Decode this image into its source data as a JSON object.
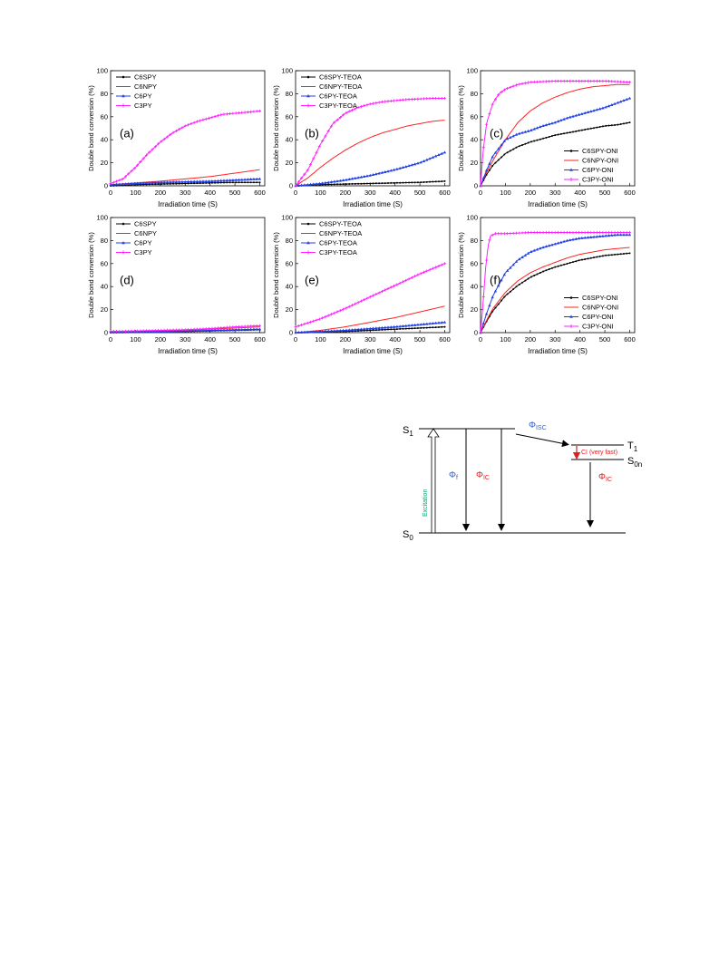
{
  "colors": {
    "C6SPY": "#000000",
    "C6NPY": "#ff2020",
    "C6PY": "#1f3fe8",
    "C3PY": "#ff20ff",
    "text": "#000000",
    "green": "#00a06a",
    "blue": "#2f5fd0",
    "red": "#e02020"
  },
  "chart_data": [
    {
      "type": "line",
      "label": "(a)",
      "xlabel": "Irradiation time (S)",
      "ylabel": "Double bond conversion (%)",
      "xlim": [
        0,
        620
      ],
      "ylim": [
        0,
        100
      ],
      "xticks": [
        0,
        100,
        200,
        300,
        400,
        500,
        600
      ],
      "yticks": [
        0,
        20,
        40,
        60,
        80,
        100
      ],
      "legend_position": "top-left",
      "label_position": "left",
      "series": [
        {
          "name": "C6SPY",
          "key": "C6SPY",
          "x": [
            0,
            100,
            200,
            300,
            400,
            500,
            600
          ],
          "y": [
            0,
            1,
            1.5,
            2,
            2.5,
            3,
            3
          ]
        },
        {
          "name": "C6NPY",
          "key": "C6NPY",
          "x": [
            0,
            100,
            200,
            300,
            400,
            500,
            600
          ],
          "y": [
            1,
            2.5,
            4,
            6,
            8,
            11,
            14
          ]
        },
        {
          "name": "C6PY",
          "key": "C6PY",
          "x": [
            0,
            100,
            200,
            300,
            400,
            500,
            600
          ],
          "y": [
            1,
            2,
            3,
            3.5,
            4,
            5,
            6
          ]
        },
        {
          "name": "C3PY",
          "key": "C3PY",
          "x": [
            0,
            50,
            100,
            150,
            200,
            250,
            300,
            350,
            400,
            450,
            500,
            550,
            600
          ],
          "y": [
            2,
            6,
            16,
            28,
            38,
            46,
            52,
            56,
            59,
            62,
            63,
            64,
            65
          ]
        }
      ]
    },
    {
      "type": "line",
      "label": "(b)",
      "xlabel": "Irradiation time (S)",
      "ylabel": "Double bond conversion (%)",
      "xlim": [
        0,
        620
      ],
      "ylim": [
        0,
        100
      ],
      "xticks": [
        0,
        100,
        200,
        300,
        400,
        500,
        600
      ],
      "yticks": [
        0,
        20,
        40,
        60,
        80,
        100
      ],
      "legend_position": "top-left",
      "label_position": "left",
      "series": [
        {
          "name": "C6SPY-TEOA",
          "key": "C6SPY",
          "x": [
            0,
            100,
            200,
            300,
            400,
            500,
            600
          ],
          "y": [
            0,
            1,
            1.5,
            2,
            2.5,
            3,
            4
          ]
        },
        {
          "name": "C6NPY-TEOA",
          "key": "C6NPY",
          "x": [
            0,
            50,
            100,
            150,
            200,
            250,
            300,
            350,
            400,
            450,
            500,
            550,
            600
          ],
          "y": [
            0,
            7,
            16,
            24,
            31,
            37,
            42,
            46,
            49,
            52,
            54,
            56,
            57
          ]
        },
        {
          "name": "C6PY-TEOA",
          "key": "C6PY",
          "x": [
            0,
            100,
            200,
            300,
            400,
            500,
            600
          ],
          "y": [
            0,
            2,
            5,
            9,
            14,
            20,
            29
          ]
        },
        {
          "name": "C3PY-TEOA",
          "key": "C3PY",
          "x": [
            0,
            50,
            100,
            150,
            200,
            250,
            300,
            350,
            400,
            450,
            500,
            550,
            600
          ],
          "y": [
            0,
            14,
            36,
            54,
            63,
            68,
            71,
            73,
            74,
            75,
            75.5,
            76,
            76
          ]
        }
      ]
    },
    {
      "type": "line",
      "label": "(c)",
      "xlabel": "Irradiation time (S)",
      "ylabel": "Double bond conversion (%)",
      "xlim": [
        0,
        620
      ],
      "ylim": [
        0,
        100
      ],
      "xticks": [
        0,
        100,
        200,
        300,
        400,
        500,
        600
      ],
      "yticks": [
        0,
        20,
        40,
        60,
        80,
        100
      ],
      "legend_position": "bottom-right",
      "label_position": "left",
      "series": [
        {
          "name": "C6SPY-ONI",
          "key": "C6SPY",
          "x": [
            0,
            25,
            50,
            100,
            150,
            200,
            250,
            300,
            350,
            400,
            450,
            500,
            550,
            600
          ],
          "y": [
            0,
            10,
            18,
            28,
            34,
            38,
            41,
            44,
            46,
            48,
            50,
            52,
            53,
            55
          ]
        },
        {
          "name": "C6NPY-ONI",
          "key": "C6NPY",
          "x": [
            0,
            25,
            50,
            100,
            150,
            200,
            250,
            300,
            350,
            400,
            450,
            500,
            550,
            600
          ],
          "y": [
            0,
            12,
            22,
            40,
            55,
            65,
            72,
            77,
            81,
            84,
            86,
            87,
            88,
            88
          ]
        },
        {
          "name": "C6PY-ONI",
          "key": "C6PY",
          "x": [
            0,
            25,
            50,
            100,
            150,
            200,
            250,
            300,
            350,
            400,
            450,
            500,
            550,
            600
          ],
          "y": [
            0,
            14,
            26,
            40,
            45,
            48,
            52,
            55,
            59,
            62,
            65,
            68,
            72,
            76
          ]
        },
        {
          "name": "C3PY-ONI",
          "key": "C3PY",
          "x": [
            0,
            10,
            25,
            50,
            75,
            100,
            150,
            200,
            300,
            400,
            500,
            600
          ],
          "y": [
            0,
            30,
            55,
            72,
            80,
            84,
            88,
            90,
            91,
            91,
            91,
            90
          ]
        }
      ]
    },
    {
      "type": "line",
      "label": "(d)",
      "xlabel": "Irradiation time (S)",
      "ylabel": "Double bond conversion (%)",
      "xlim": [
        0,
        620
      ],
      "ylim": [
        0,
        100
      ],
      "xticks": [
        0,
        100,
        200,
        300,
        400,
        500,
        600
      ],
      "yticks": [
        0,
        20,
        40,
        60,
        80,
        100
      ],
      "legend_position": "top-left",
      "label_position": "left",
      "series": [
        {
          "name": "C6SPY",
          "key": "C6SPY",
          "x": [
            0,
            100,
            200,
            300,
            400,
            500,
            600
          ],
          "y": [
            0,
            0.5,
            1,
            1,
            1.5,
            2,
            2.5
          ]
        },
        {
          "name": "C6NPY",
          "key": "C6NPY",
          "x": [
            0,
            100,
            200,
            300,
            400,
            500,
            600
          ],
          "y": [
            1,
            1,
            1.5,
            2,
            3,
            4,
            5
          ]
        },
        {
          "name": "C6PY",
          "key": "C6PY",
          "x": [
            0,
            100,
            200,
            300,
            400,
            500,
            600
          ],
          "y": [
            1,
            1,
            1,
            1.5,
            2,
            2.5,
            3
          ]
        },
        {
          "name": "C3PY",
          "key": "C3PY",
          "x": [
            0,
            100,
            200,
            300,
            400,
            500,
            600
          ],
          "y": [
            1,
            1.5,
            2,
            2.5,
            3.5,
            5,
            6
          ]
        }
      ]
    },
    {
      "type": "line",
      "label": "(e)",
      "xlabel": "Irradiation time (S)",
      "ylabel": "Double bond conversion (%)",
      "xlim": [
        0,
        620
      ],
      "ylim": [
        0,
        100
      ],
      "xticks": [
        0,
        100,
        200,
        300,
        400,
        500,
        600
      ],
      "yticks": [
        0,
        20,
        40,
        60,
        80,
        100
      ],
      "legend_position": "top-left",
      "label_position": "left",
      "series": [
        {
          "name": "C6SPY-TEOA",
          "key": "C6SPY",
          "x": [
            0,
            100,
            200,
            300,
            400,
            500,
            600
          ],
          "y": [
            0,
            0.5,
            1,
            2,
            3,
            4,
            5
          ]
        },
        {
          "name": "C6NPY-TEOA",
          "key": "C6NPY",
          "x": [
            0,
            100,
            200,
            300,
            400,
            500,
            600
          ],
          "y": [
            0,
            2,
            5,
            9,
            13,
            18,
            23
          ]
        },
        {
          "name": "C6PY-TEOA",
          "key": "C6PY",
          "x": [
            0,
            100,
            200,
            300,
            400,
            500,
            600
          ],
          "y": [
            0,
            1,
            2,
            3.5,
            5,
            7,
            9
          ]
        },
        {
          "name": "C3PY-TEOA",
          "key": "C3PY",
          "x": [
            0,
            100,
            200,
            300,
            400,
            500,
            600
          ],
          "y": [
            5,
            12,
            21,
            31,
            41,
            51,
            60
          ]
        }
      ]
    },
    {
      "type": "line",
      "label": "(f)",
      "xlabel": "Irradiation time (S)",
      "ylabel": "Double bond conversion (%)",
      "xlim": [
        0,
        620
      ],
      "ylim": [
        0,
        100
      ],
      "xticks": [
        0,
        100,
        200,
        300,
        400,
        500,
        600
      ],
      "yticks": [
        0,
        20,
        40,
        60,
        80,
        100
      ],
      "legend_position": "bottom-right",
      "label_position": "left",
      "series": [
        {
          "name": "C6SPY-ONI",
          "key": "C6SPY",
          "x": [
            0,
            25,
            50,
            100,
            150,
            200,
            250,
            300,
            350,
            400,
            450,
            500,
            550,
            600
          ],
          "y": [
            0,
            10,
            19,
            32,
            41,
            48,
            53,
            57,
            60,
            63,
            65,
            67,
            68,
            69
          ]
        },
        {
          "name": "C6NPY-ONI",
          "key": "C6NPY",
          "x": [
            0,
            25,
            50,
            100,
            150,
            200,
            250,
            300,
            350,
            400,
            450,
            500,
            550,
            600
          ],
          "y": [
            0,
            11,
            21,
            35,
            45,
            52,
            57,
            61,
            65,
            68,
            70,
            72,
            73,
            74
          ]
        },
        {
          "name": "C6PY-ONI",
          "key": "C6PY",
          "x": [
            0,
            25,
            50,
            100,
            150,
            200,
            250,
            300,
            350,
            400,
            450,
            500,
            550,
            600
          ],
          "y": [
            0,
            17,
            32,
            52,
            63,
            70,
            74,
            77,
            80,
            82,
            83,
            84,
            85,
            85
          ]
        },
        {
          "name": "C3PY-ONI",
          "key": "C3PY",
          "x": [
            0,
            10,
            20,
            30,
            40,
            60,
            100,
            200,
            300,
            400,
            500,
            600
          ],
          "y": [
            0,
            25,
            55,
            75,
            84,
            86,
            86,
            87,
            87,
            87,
            87,
            87
          ]
        }
      ]
    }
  ],
  "diagram": {
    "s1": "S",
    "s1_sub": "1",
    "s0": "S",
    "s0_sub": "0",
    "t1": "T",
    "t1_sub": "1",
    "s0n": "S",
    "s0n_sub": "0n",
    "excitation": "Excitation",
    "phi_f": "Φ",
    "phi_f_sub": "f",
    "phi_ic": "Φ",
    "phi_ic_sub": "IC",
    "phi_isc": "Φ",
    "phi_isc_sub": "ISC",
    "ci": "CI (very fast)",
    "phi_ic2": "Φ",
    "phi_ic2_sub": "IC"
  }
}
